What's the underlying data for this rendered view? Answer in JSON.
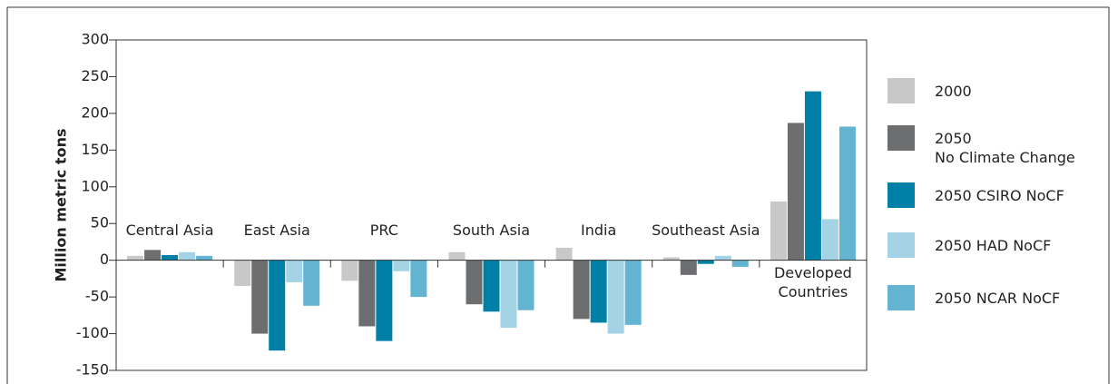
{
  "chart_data": {
    "type": "bar",
    "y_label": "Million metric tons",
    "categories": [
      "Central Asia",
      "East Asia",
      "PRC",
      "South Asia",
      "India",
      "Southeast Asia",
      "Developed\nCountries"
    ],
    "series": [
      {
        "name": "2000",
        "color": "#c8c8c8",
        "values": [
          6,
          -35,
          -28,
          11,
          17,
          4,
          80
        ]
      },
      {
        "name": "2050\nNo Climate Change",
        "color": "#6d6e70",
        "values": [
          14,
          -100,
          -90,
          -60,
          -80,
          -20,
          187
        ]
      },
      {
        "name": "2050 CSIRO NoCF",
        "color": "#0080a6",
        "values": [
          7,
          -123,
          -110,
          -70,
          -85,
          -5,
          230
        ]
      },
      {
        "name": "2050 HAD NoCF",
        "color": "#a5d3e6",
        "values": [
          11,
          -30,
          -15,
          -92,
          -100,
          6,
          56
        ]
      },
      {
        "name": "2050 NCAR NoCF",
        "color": "#62b4d0",
        "values": [
          6,
          -62,
          -50,
          -68,
          -88,
          -9,
          182
        ]
      }
    ],
    "ylim": [
      -150,
      300
    ],
    "yticks": [
      -150,
      -100,
      -50,
      0,
      50,
      100,
      150,
      200,
      250,
      300
    ]
  }
}
